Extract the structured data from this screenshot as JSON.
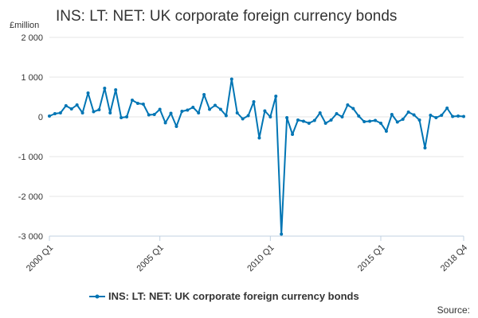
{
  "chart_data": {
    "type": "line",
    "title": "INS: LT: NET: UK corporate foreign currency bonds",
    "unit_label": "£million",
    "source_label": "Source:",
    "ylim": [
      -3000,
      2000
    ],
    "y_ticks": [
      2000,
      1000,
      0,
      -1000,
      -2000,
      -3000
    ],
    "y_tick_labels": [
      "2 000",
      "1 000",
      "0",
      "-1 000",
      "-2 000",
      "-3 000"
    ],
    "x_tick_labels": [
      "2000 Q1",
      "2005 Q1",
      "2010 Q1",
      "2015 Q1",
      "2018 Q4"
    ],
    "x_tick_indices": [
      0,
      20,
      40,
      60,
      75
    ],
    "line_color": "#0075b4",
    "series": [
      {
        "name": "INS: LT: NET: UK corporate foreign currency bonds",
        "x": [
          "2000 Q1",
          "2000 Q2",
          "2000 Q3",
          "2000 Q4",
          "2001 Q1",
          "2001 Q2",
          "2001 Q3",
          "2001 Q4",
          "2002 Q1",
          "2002 Q2",
          "2002 Q3",
          "2002 Q4",
          "2003 Q1",
          "2003 Q2",
          "2003 Q3",
          "2003 Q4",
          "2004 Q1",
          "2004 Q2",
          "2004 Q3",
          "2004 Q4",
          "2005 Q1",
          "2005 Q2",
          "2005 Q3",
          "2005 Q4",
          "2006 Q1",
          "2006 Q2",
          "2006 Q3",
          "2006 Q4",
          "2007 Q1",
          "2007 Q2",
          "2007 Q3",
          "2007 Q4",
          "2008 Q1",
          "2008 Q2",
          "2008 Q3",
          "2008 Q4",
          "2009 Q1",
          "2009 Q2",
          "2009 Q3",
          "2009 Q4",
          "2010 Q1",
          "2010 Q2",
          "2010 Q3",
          "2010 Q4",
          "2011 Q1",
          "2011 Q2",
          "2011 Q3",
          "2011 Q4",
          "2012 Q1",
          "2012 Q2",
          "2012 Q3",
          "2012 Q4",
          "2013 Q1",
          "2013 Q2",
          "2013 Q3",
          "2013 Q4",
          "2014 Q1",
          "2014 Q2",
          "2014 Q3",
          "2014 Q4",
          "2015 Q1",
          "2015 Q2",
          "2015 Q3",
          "2015 Q4",
          "2016 Q1",
          "2016 Q2",
          "2016 Q3",
          "2016 Q4",
          "2017 Q1",
          "2017 Q2",
          "2017 Q3",
          "2017 Q4",
          "2018 Q1",
          "2018 Q2",
          "2018 Q3",
          "2018 Q4"
        ],
        "values": [
          20,
          80,
          100,
          280,
          200,
          300,
          100,
          600,
          130,
          180,
          720,
          100,
          680,
          -20,
          0,
          420,
          340,
          320,
          50,
          60,
          190,
          -150,
          90,
          -240,
          140,
          170,
          240,
          100,
          560,
          190,
          290,
          190,
          30,
          950,
          100,
          -50,
          30,
          380,
          -530,
          150,
          0,
          520,
          -2950,
          -20,
          -440,
          -80,
          -110,
          -160,
          -90,
          100,
          -160,
          -80,
          80,
          0,
          300,
          210,
          20,
          -120,
          -110,
          -90,
          -160,
          -360,
          60,
          -130,
          -60,
          120,
          50,
          -80,
          -780,
          40,
          -20,
          40,
          220,
          10,
          20,
          10
        ]
      }
    ]
  }
}
